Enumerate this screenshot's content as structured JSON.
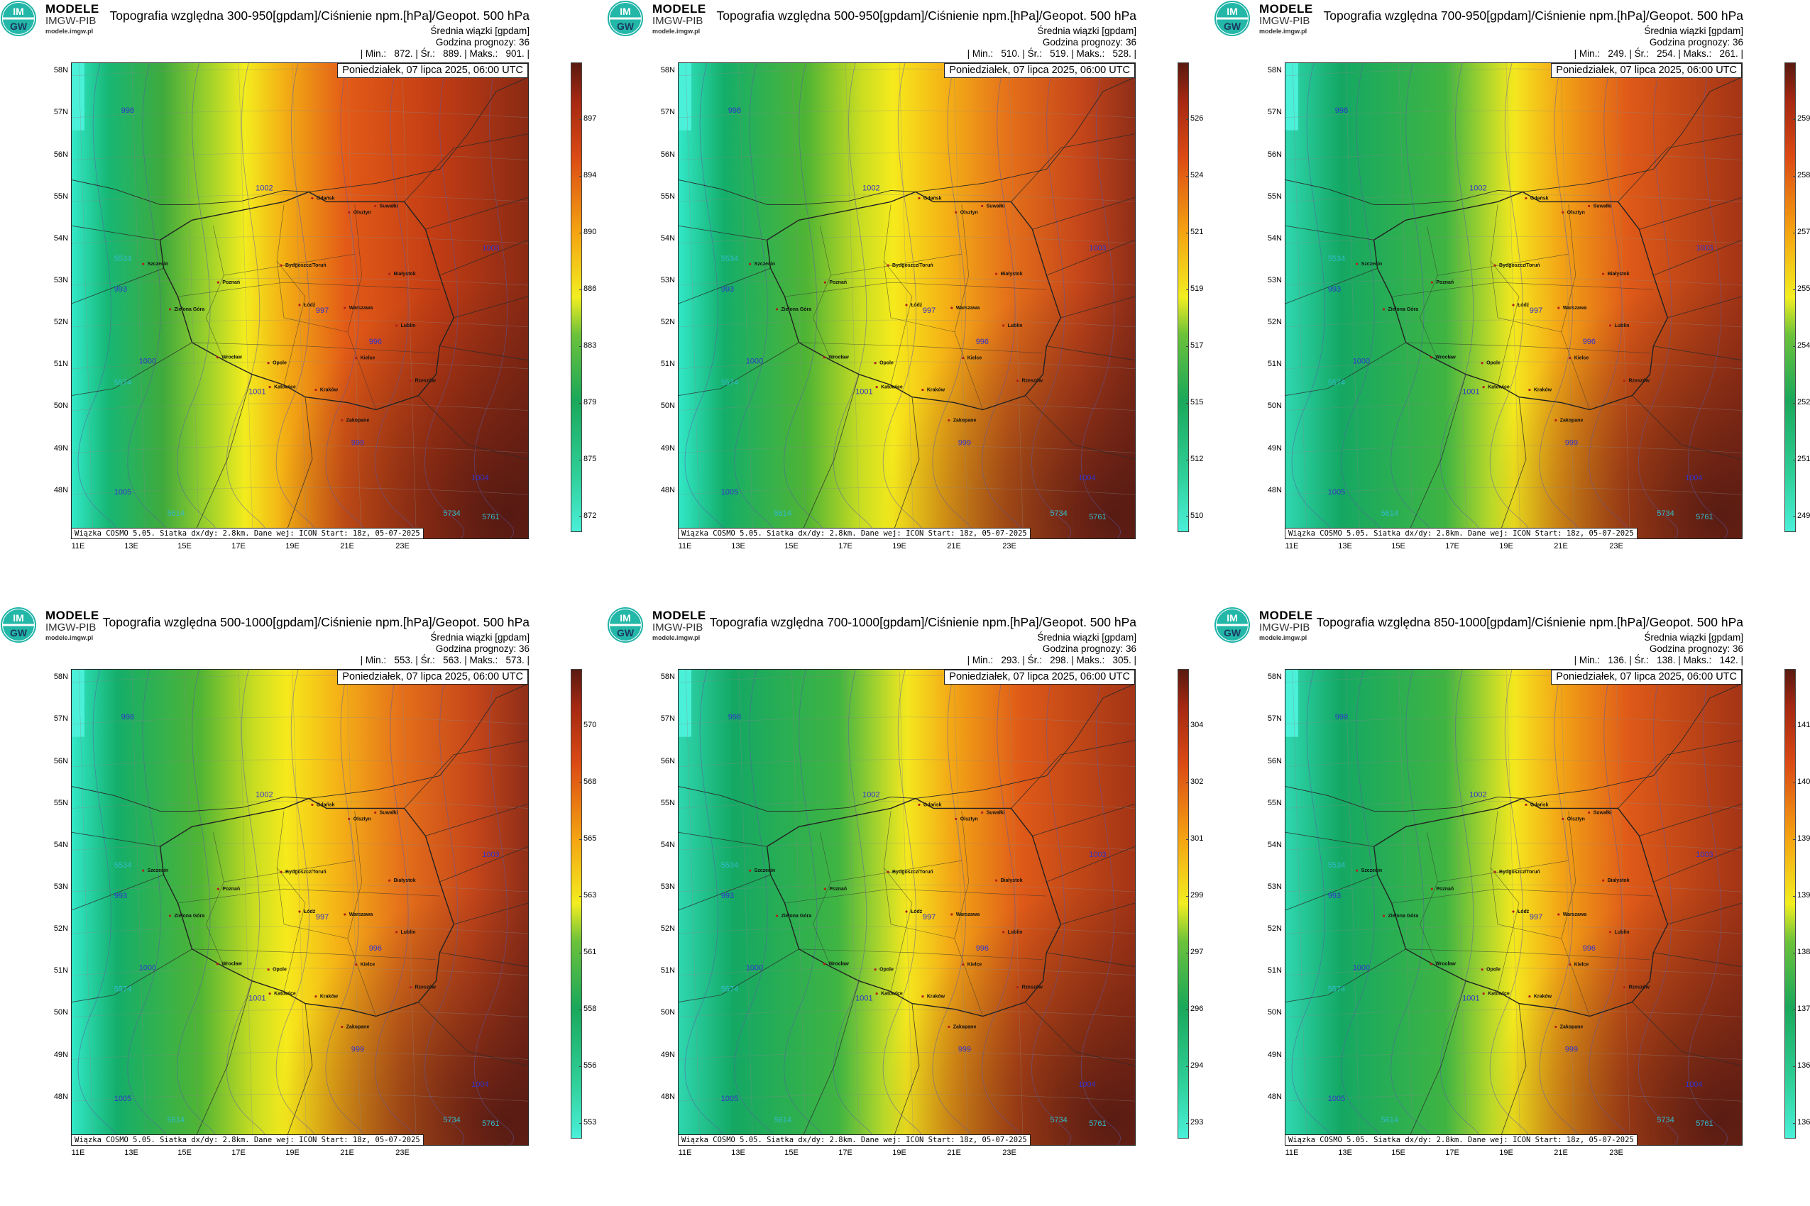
{
  "brand": {
    "name": "MODELE",
    "org": "IMGW-PIB",
    "url": "modele.imgw.pl",
    "logo_text_top": "IM",
    "logo_text_bottom": "GW"
  },
  "common": {
    "subtitle_line1": "Średnia wiązki [gpdam]",
    "subtitle_line2": "Godzina prognozy: 36",
    "date": "Poniedziałek, 07 lipca 2025, 06:00 UTC",
    "footer": "Wiązka COSMO 5.05. Siatka dx/dy: 2.8km. Dane wej: ICON Start: 18z, 05-07-2025",
    "lat_labels": [
      "58N",
      "57N",
      "56N",
      "55N",
      "54N",
      "53N",
      "52N",
      "51N",
      "50N",
      "49N",
      "48N"
    ],
    "lon_labels": [
      "11E",
      "13E",
      "15E",
      "17E",
      "19E",
      "21E",
      "23E"
    ],
    "cities": [
      "Gdańsk",
      "Olsztyn",
      "Suwałki",
      "Szczecin",
      "Bydgoszcz/Toruń",
      "Białystok",
      "Poznań",
      "Warszawa",
      "Zielona Góra",
      "Łódź",
      "Lublin",
      "Wrocław",
      "Kielce",
      "Opole",
      "Rzeszów",
      "Katowice",
      "Kraków",
      "Zakopane"
    ],
    "isobars": [
      "998",
      "1000",
      "1002",
      "1004",
      "1003",
      "999",
      "997",
      "996",
      "993",
      "1005",
      "1001"
    ],
    "geopot": [
      "5534",
      "5574",
      "5734",
      "5761",
      "5614"
    ]
  },
  "panels": [
    {
      "title": "Topografia względna 300-950[gpdam]/Ciśnienie npm.[hPa]/Geopot. 500 hPa",
      "stats": "| Min.:   872. | Śr.:   889. | Maks.:   901. |",
      "colorbar_ticks": [
        "897",
        "894",
        "890",
        "886",
        "883",
        "879",
        "875",
        "872"
      ]
    },
    {
      "title": "Topografia względna 500-950[gpdam]/Ciśnienie npm.[hPa]/Geopot. 500 hPa",
      "stats": "| Min.:   510. | Śr.:   519. | Maks.:   528. |",
      "colorbar_ticks": [
        "526",
        "524",
        "521",
        "519",
        "517",
        "515",
        "512",
        "510"
      ]
    },
    {
      "title": "Topografia względna 700-950[gpdam]/Ciśnienie npm.[hPa]/Geopot. 500 hPa",
      "stats": "| Min.:   249. | Śr.:   254. | Maks.:   261. |",
      "colorbar_ticks": [
        "259",
        "258",
        "257",
        "255",
        "254",
        "252",
        "251",
        "249"
      ]
    },
    {
      "title": "Topografia względna 500-1000[gpdam]/Ciśnienie npm.[hPa]/Geopot. 500 hPa",
      "stats": "| Min.:   553. | Śr.:   563. | Maks.:   573. |",
      "colorbar_ticks": [
        "570",
        "568",
        "565",
        "563",
        "561",
        "558",
        "556",
        "553"
      ]
    },
    {
      "title": "Topografia względna 700-1000[gpdam]/Ciśnienie npm.[hPa]/Geopot. 500 hPa",
      "stats": "| Min.:   293. | Śr.:   298. | Maks.:   305. |",
      "colorbar_ticks": [
        "304",
        "302",
        "301",
        "299",
        "297",
        "296",
        "294",
        "293"
      ]
    },
    {
      "title": "Topografia względna 850-1000[gpdam]/Ciśnienie npm.[hPa]/Geopot. 500 hPa",
      "stats": "| Min.:   136. | Śr.:   138. | Maks.:   142. |",
      "colorbar_ticks": [
        "141",
        "140",
        "139",
        "139",
        "138",
        "137",
        "136",
        "136"
      ]
    }
  ]
}
